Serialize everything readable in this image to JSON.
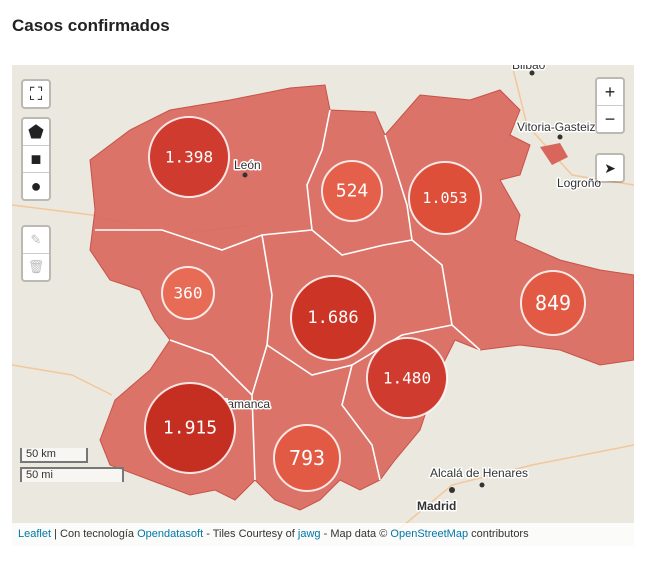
{
  "title": "Casos confirmados",
  "map": {
    "markers": [
      {
        "label": "1.398"
      },
      {
        "label": "524"
      },
      {
        "label": "1.053"
      },
      {
        "label": "360"
      },
      {
        "label": "1.686"
      },
      {
        "label": "849"
      },
      {
        "label": "1.480"
      },
      {
        "label": "1.915"
      },
      {
        "label": "793"
      }
    ],
    "places": [
      {
        "label": "Bilbao"
      },
      {
        "label": "Vitoria-Gasteiz"
      },
      {
        "label": "Logroño"
      },
      {
        "label": "León"
      },
      {
        "label": "Salamanca"
      },
      {
        "label": "Alcalá de Henares"
      },
      {
        "label": "Madrid"
      }
    ],
    "controls": {
      "zoom_in": "+",
      "zoom_out": "−"
    },
    "scale": {
      "metric": "50 km",
      "imperial": "50 mi"
    },
    "attribution": {
      "leaflet": "Leaflet",
      "powered": "| Con tecnología",
      "provider": "Opendatasoft",
      "tiles": "- Tiles Courtesy of",
      "tiles_link": "jawg",
      "mapdata": "- Map data ©",
      "osm": "OpenStreetMap",
      "contributors": "contributors"
    }
  }
}
